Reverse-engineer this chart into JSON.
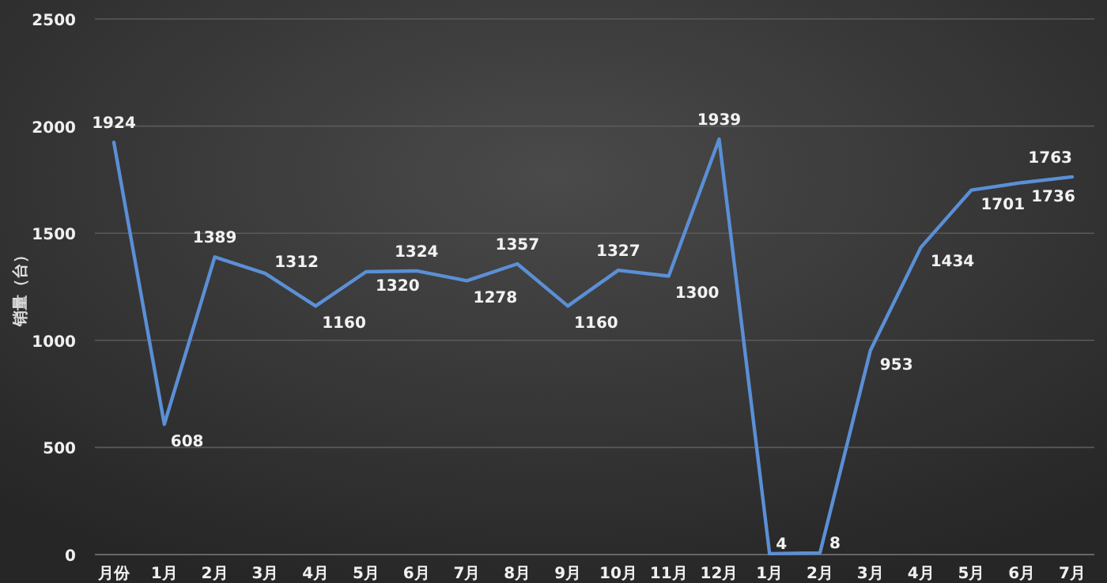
{
  "chart_data": {
    "type": "line",
    "ylabel": "销量（台）",
    "categories": [
      "月份",
      "1月",
      "2月",
      "3月",
      "4月",
      "5月",
      "6月",
      "7月",
      "8月",
      "9月",
      "10月",
      "11月",
      "12月",
      "1月",
      "2月",
      "3月",
      "4月",
      "5月",
      "6月",
      "7月"
    ],
    "series": [
      {
        "color": "#5b8fd6",
        "values": [
          1924,
          608,
          1389,
          1312,
          1160,
          1320,
          1324,
          1278,
          1357,
          1160,
          1327,
          1300,
          1939,
          4,
          8,
          953,
          1434,
          1701,
          1736,
          1763
        ]
      }
    ],
    "ylim": [
      0,
      2500
    ],
    "yticks": [
      0,
      500,
      1000,
      1500,
      2000,
      2500
    ],
    "grid": "y",
    "data_labels": true,
    "marker": "none",
    "line_style": "solid"
  }
}
